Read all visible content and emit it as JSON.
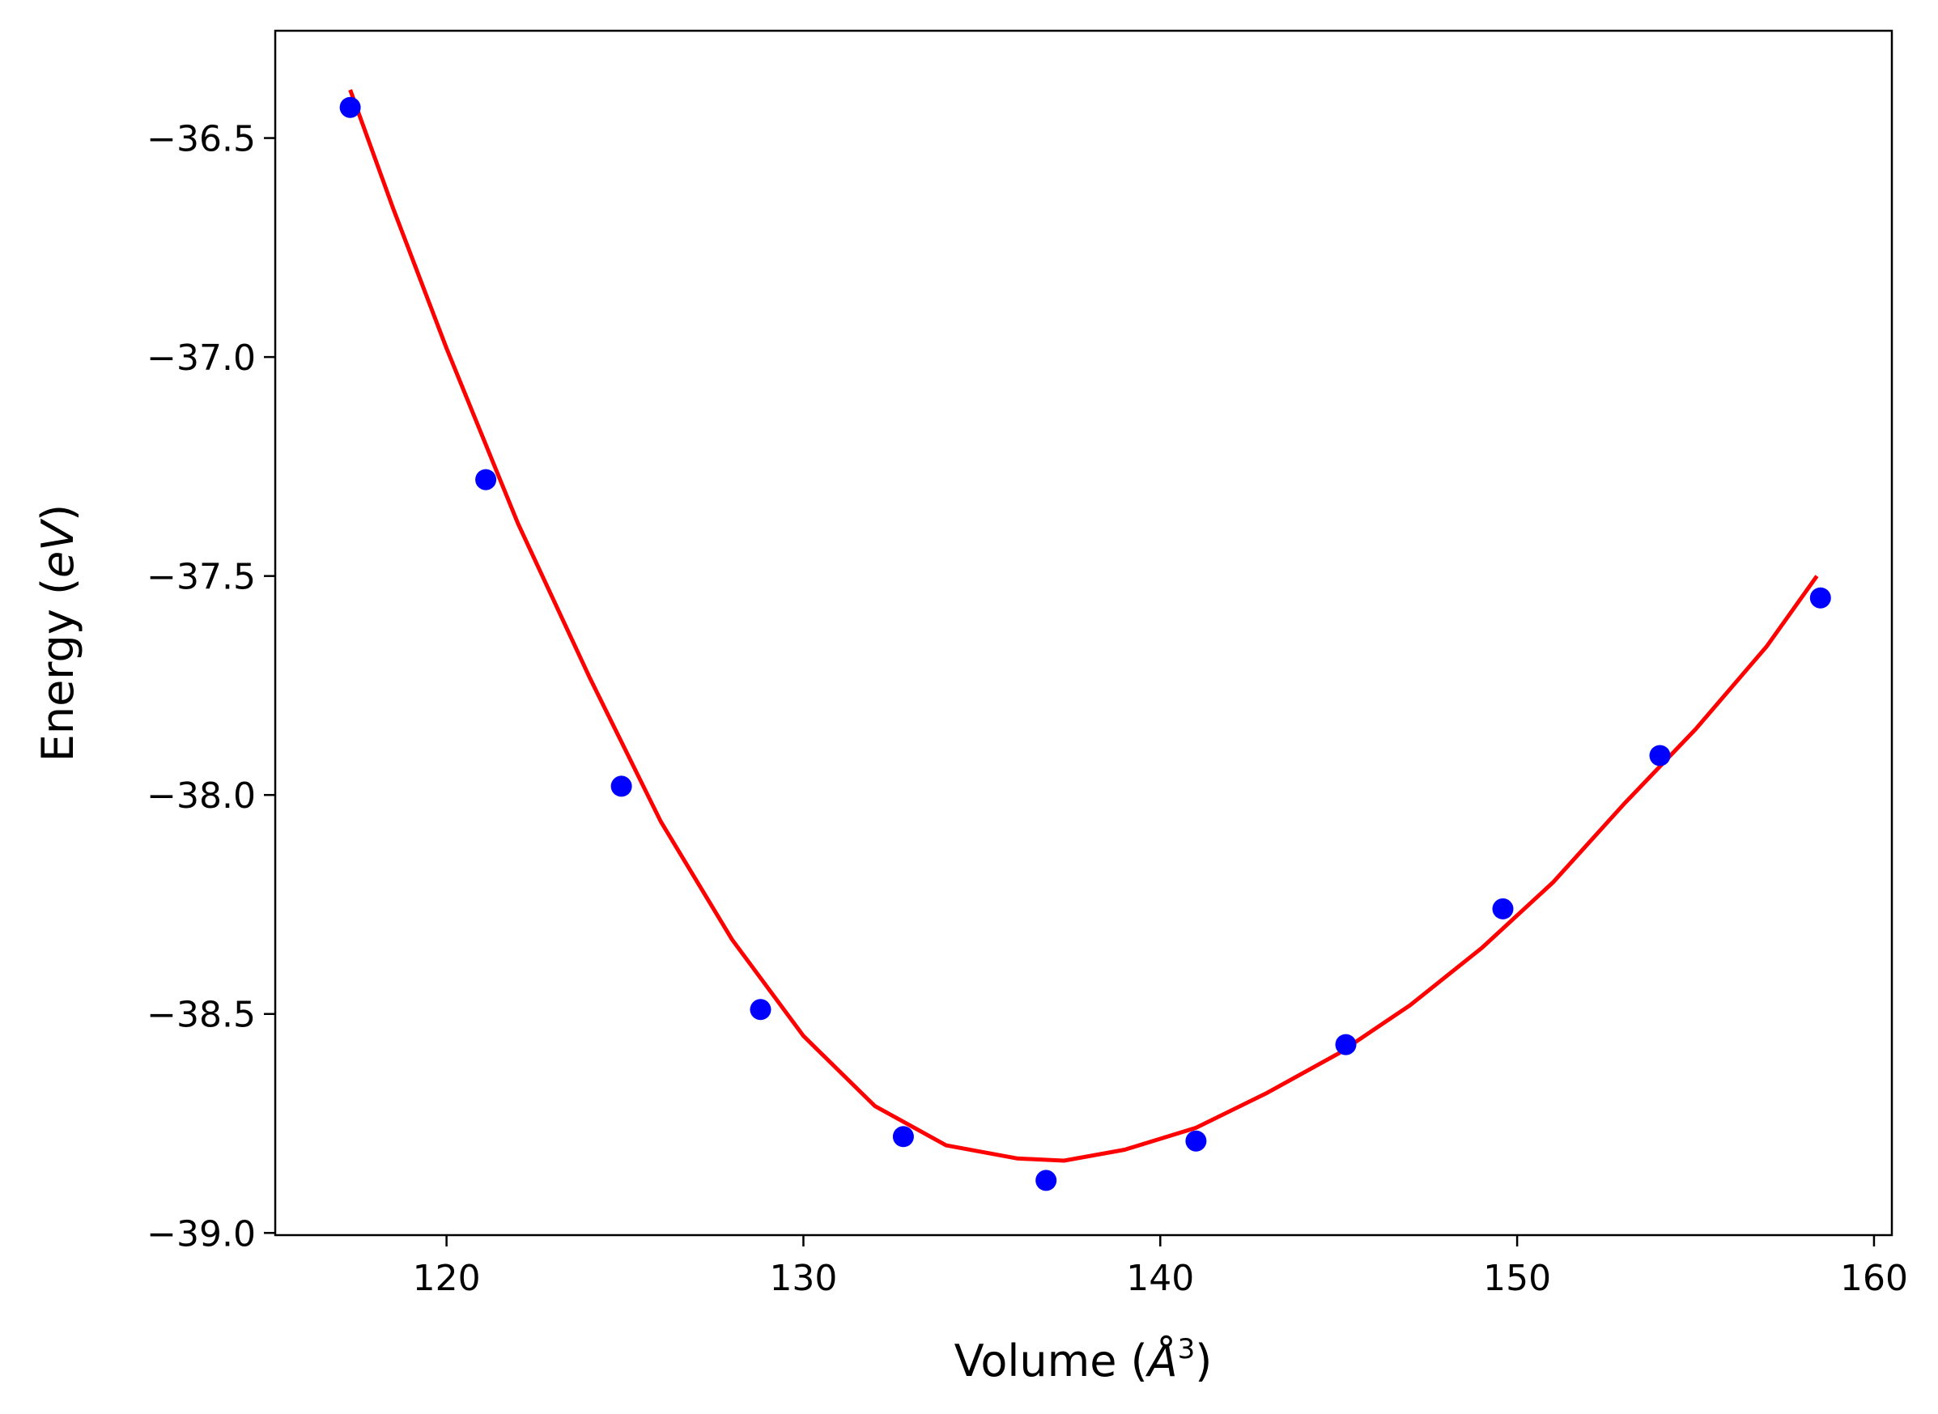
{
  "chart_data": {
    "type": "scatter",
    "xlabel": "Volume (",
    "xlabel_symbol": "Å",
    "xlabel_exp": "3",
    "xlabel_end": ")",
    "ylabel": "Energy (",
    "ylabel_unit": "eV",
    "ylabel_end": ")",
    "xlim": [
      115.2,
      160.5
    ],
    "ylim": [
      -39.005,
      -36.255
    ],
    "x_ticks": [
      120,
      130,
      140,
      150,
      160
    ],
    "x_tick_labels": [
      "120",
      "130",
      "140",
      "150",
      "160"
    ],
    "y_ticks": [
      -36.5,
      -37.0,
      -37.5,
      -38.0,
      -38.5,
      -39.0
    ],
    "y_tick_labels": [
      "−36.5",
      "−37.0",
      "−37.5",
      "−38.0",
      "−38.5",
      "−39.0"
    ],
    "grid": false,
    "series": [
      {
        "kind": "points",
        "color": "#0000ff",
        "x": [
          117.3,
          121.1,
          124.9,
          128.8,
          132.8,
          136.8,
          141.0,
          145.2,
          149.6,
          154.0,
          158.5
        ],
        "y": [
          -36.43,
          -37.28,
          -37.98,
          -38.49,
          -38.78,
          -38.88,
          -38.79,
          -38.57,
          -38.26,
          -37.91,
          -37.55
        ]
      },
      {
        "kind": "fit",
        "color": "#ff0000",
        "x": [
          117.3,
          118.5,
          120,
          122,
          124,
          126,
          128,
          130,
          132,
          134,
          136,
          137.3,
          139,
          141,
          143,
          145,
          147,
          149,
          151,
          153,
          155,
          157,
          158.4
        ],
        "y": [
          -36.39,
          -36.66,
          -36.98,
          -37.38,
          -37.73,
          -38.06,
          -38.33,
          -38.55,
          -38.71,
          -38.8,
          -38.83,
          -38.835,
          -38.81,
          -38.76,
          -38.68,
          -38.59,
          -38.48,
          -38.35,
          -38.2,
          -38.02,
          -37.85,
          -37.66,
          -37.5
        ]
      }
    ]
  }
}
